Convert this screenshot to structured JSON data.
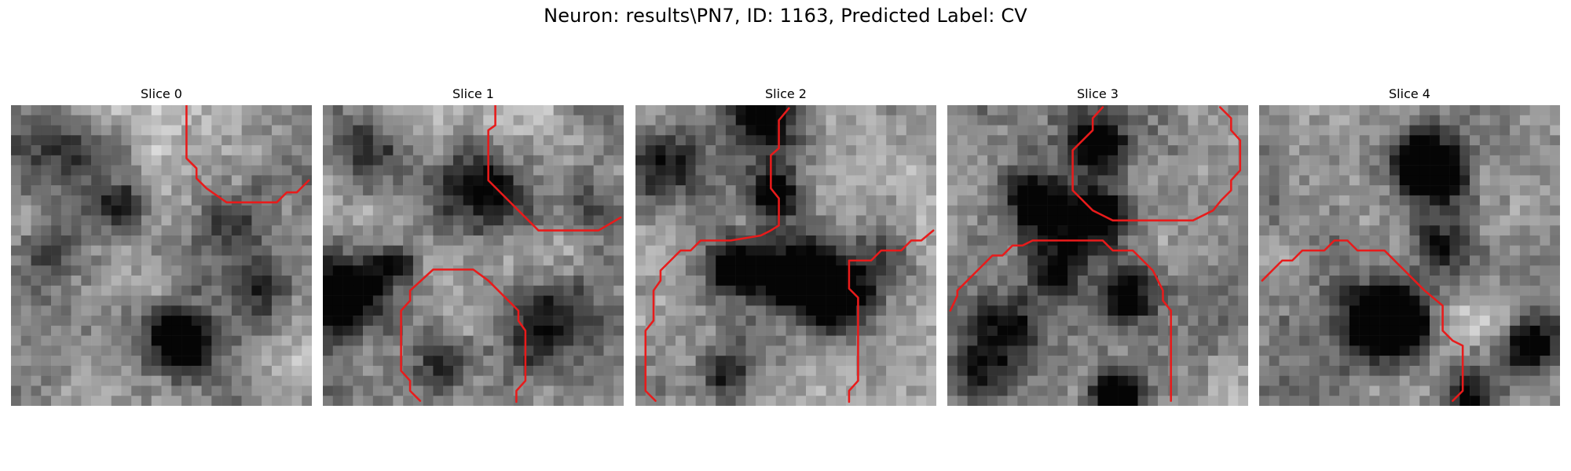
{
  "figure": {
    "title": "Neuron: results\\PN7, ID: 1163, Predicted Label: CV"
  },
  "panels": [
    {
      "title": "Slice 0"
    },
    {
      "title": "Slice 1"
    },
    {
      "title": "Slice 2"
    },
    {
      "title": "Slice 3"
    },
    {
      "title": "Slice 4"
    }
  ],
  "colors": {
    "contour": "#e81b1b",
    "background": "#ffffff"
  }
}
